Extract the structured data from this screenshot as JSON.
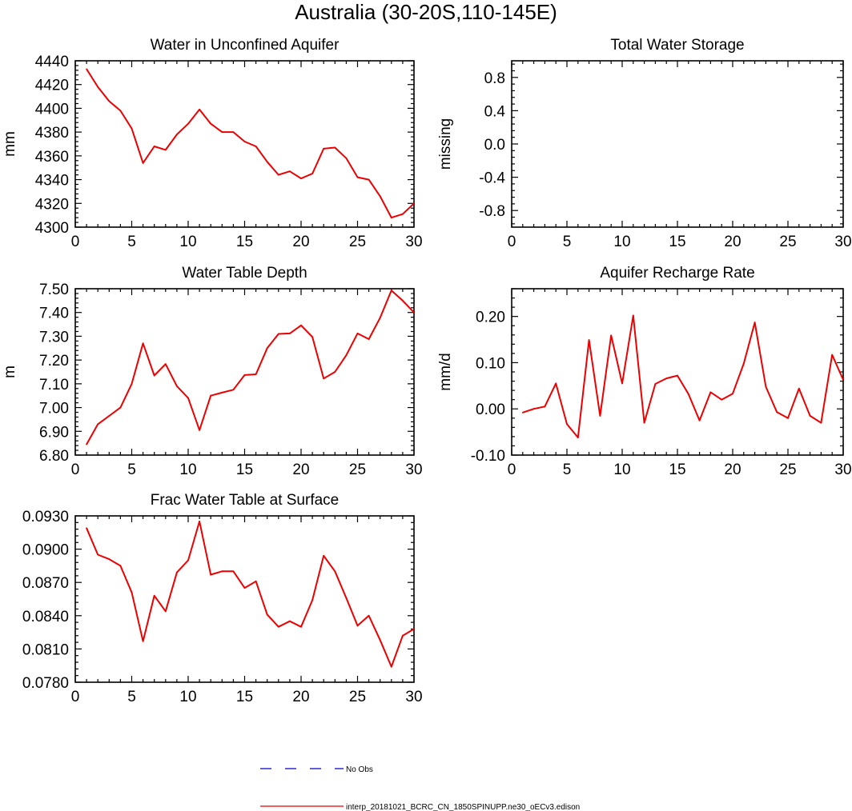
{
  "figure_title": "Australia (30-20S,110-145E)",
  "chart_data": [
    {
      "type": "line",
      "title": "Water in Unconfined Aquifer",
      "xlabel": "",
      "ylabel": "mm",
      "xlim": [
        0,
        30
      ],
      "ylim": [
        4300,
        4440
      ],
      "xticks": [
        0,
        5,
        10,
        15,
        20,
        25,
        30
      ],
      "xtick_labels": [
        "0",
        "5",
        "10",
        "15",
        "20",
        "25",
        "30"
      ],
      "yticks": [
        4300,
        4320,
        4340,
        4360,
        4380,
        4400,
        4420,
        4440
      ],
      "ytick_labels": [
        "4300",
        "4320",
        "4340",
        "4360",
        "4380",
        "4400",
        "4420",
        "4440"
      ],
      "series": [
        {
          "name": "interp_20181021_BCRC_CN_1850SPINUPP.ne30_oECv3.edison",
          "color": "#ee0000",
          "x": [
            1,
            2,
            3,
            4,
            5,
            6,
            7,
            8,
            9,
            10,
            11,
            12,
            13,
            14,
            15,
            16,
            17,
            18,
            19,
            20,
            21,
            22,
            23,
            24,
            25,
            26,
            27,
            28,
            29,
            30
          ],
          "values": [
            4433,
            4418,
            4406,
            4398,
            4383,
            4354,
            4368,
            4365,
            4378,
            4387,
            4399,
            4387,
            4380,
            4380,
            4372,
            4368,
            4355,
            4344,
            4347,
            4341,
            4345,
            4366,
            4367,
            4358,
            4342,
            4340,
            4326,
            4308,
            4311,
            4320
          ]
        }
      ]
    },
    {
      "type": "line",
      "title": "Total Water Storage",
      "xlabel": "",
      "ylabel": "missing",
      "xlim": [
        0,
        30
      ],
      "ylim": [
        -1.0,
        1.0
      ],
      "xticks": [
        0,
        5,
        10,
        15,
        20,
        25,
        30
      ],
      "xtick_labels": [
        "0",
        "5",
        "10",
        "15",
        "20",
        "25",
        "30"
      ],
      "yticks": [
        -0.8,
        -0.4,
        0.0,
        0.4,
        0.8
      ],
      "ytick_labels": [
        "-0.8",
        "-0.4",
        "0.0",
        "0.4",
        "0.8"
      ],
      "series": []
    },
    {
      "type": "line",
      "title": "Water Table Depth",
      "xlabel": "",
      "ylabel": "m",
      "xlim": [
        0,
        30
      ],
      "ylim": [
        6.8,
        7.5
      ],
      "xticks": [
        0,
        5,
        10,
        15,
        20,
        25,
        30
      ],
      "xtick_labels": [
        "0",
        "5",
        "10",
        "15",
        "20",
        "25",
        "30"
      ],
      "yticks": [
        6.8,
        6.9,
        7.0,
        7.1,
        7.2,
        7.3,
        7.4,
        7.5
      ],
      "ytick_labels": [
        "6.80",
        "6.90",
        "7.00",
        "7.10",
        "7.20",
        "7.30",
        "7.40",
        "7.50"
      ],
      "series": [
        {
          "name": "interp_20181021_BCRC_CN_1850SPINUPP.ne30_oECv3.edison",
          "color": "#ee0000",
          "x": [
            1,
            2,
            3,
            4,
            5,
            6,
            7,
            8,
            9,
            10,
            11,
            12,
            13,
            14,
            15,
            16,
            17,
            18,
            19,
            20,
            21,
            22,
            23,
            24,
            25,
            26,
            27,
            28,
            29,
            30
          ],
          "values": [
            6.845,
            6.93,
            6.965,
            7.0,
            7.1,
            7.27,
            7.135,
            7.183,
            7.09,
            7.04,
            6.905,
            7.05,
            7.063,
            7.075,
            7.137,
            7.14,
            7.25,
            7.31,
            7.312,
            7.346,
            7.297,
            7.122,
            7.15,
            7.22,
            7.312,
            7.288,
            7.378,
            7.493,
            7.45,
            7.4
          ]
        }
      ]
    },
    {
      "type": "line",
      "title": "Aquifer Recharge Rate",
      "xlabel": "",
      "ylabel": "mm/d",
      "xlim": [
        0,
        30
      ],
      "ylim": [
        -0.1,
        0.26
      ],
      "xticks": [
        0,
        5,
        10,
        15,
        20,
        25,
        30
      ],
      "xtick_labels": [
        "0",
        "5",
        "10",
        "15",
        "20",
        "25",
        "30"
      ],
      "yticks": [
        -0.1,
        0.0,
        0.1,
        0.2
      ],
      "ytick_labels": [
        "-0.10",
        "0.00",
        "0.10",
        "0.20"
      ],
      "series": [
        {
          "name": "interp_20181021_BCRC_CN_1850SPINUPP.ne30_oECv3.edison",
          "color": "#ee0000",
          "x": [
            1,
            2,
            3,
            4,
            5,
            6,
            7,
            8,
            9,
            10,
            11,
            12,
            13,
            14,
            15,
            16,
            17,
            18,
            19,
            20,
            21,
            22,
            23,
            24,
            25,
            26,
            27,
            28,
            29,
            30
          ],
          "values": [
            -0.008,
            0.0,
            0.005,
            0.055,
            -0.033,
            -0.062,
            0.149,
            -0.015,
            0.159,
            0.055,
            0.202,
            -0.03,
            0.054,
            0.066,
            0.072,
            0.032,
            -0.025,
            0.036,
            0.02,
            0.033,
            0.098,
            0.187,
            0.048,
            -0.007,
            -0.02,
            0.044,
            -0.015,
            -0.03,
            0.117,
            0.063
          ]
        }
      ]
    },
    {
      "type": "line",
      "title": "Frac Water Table at Surface",
      "xlabel": "",
      "ylabel": "",
      "xlim": [
        0,
        30
      ],
      "ylim": [
        0.078,
        0.093
      ],
      "xticks": [
        0,
        5,
        10,
        15,
        20,
        25,
        30
      ],
      "xtick_labels": [
        "0",
        "5",
        "10",
        "15",
        "20",
        "25",
        "30"
      ],
      "yticks": [
        0.078,
        0.081,
        0.084,
        0.087,
        0.09,
        0.093
      ],
      "ytick_labels": [
        "0.0780",
        "0.0810",
        "0.0840",
        "0.0870",
        "0.0900",
        "0.0930"
      ],
      "series": [
        {
          "name": "interp_20181021_BCRC_CN_1850SPINUPP.ne30_oECv3.edison",
          "color": "#ee0000",
          "x": [
            1,
            2,
            3,
            4,
            5,
            6,
            7,
            8,
            9,
            10,
            11,
            12,
            13,
            14,
            15,
            16,
            17,
            18,
            19,
            20,
            21,
            22,
            23,
            24,
            25,
            26,
            27,
            28,
            29,
            30
          ],
          "values": [
            0.0919,
            0.0895,
            0.0891,
            0.0885,
            0.0861,
            0.0817,
            0.0858,
            0.0844,
            0.0879,
            0.089,
            0.0925,
            0.0877,
            0.088,
            0.088,
            0.0865,
            0.0871,
            0.0841,
            0.083,
            0.0835,
            0.083,
            0.0854,
            0.0894,
            0.088,
            0.0856,
            0.0831,
            0.084,
            0.0818,
            0.0794,
            0.0822,
            0.0828
          ]
        }
      ]
    }
  ],
  "legend": {
    "entries": [
      {
        "label": "No Obs",
        "color": "#0000cc",
        "style": "dashed"
      },
      {
        "label": "interp_20181021_BCRC_CN_1850SPINUPP.ne30_oECv3.edison",
        "color": "#ee0000",
        "style": "solid"
      }
    ]
  }
}
